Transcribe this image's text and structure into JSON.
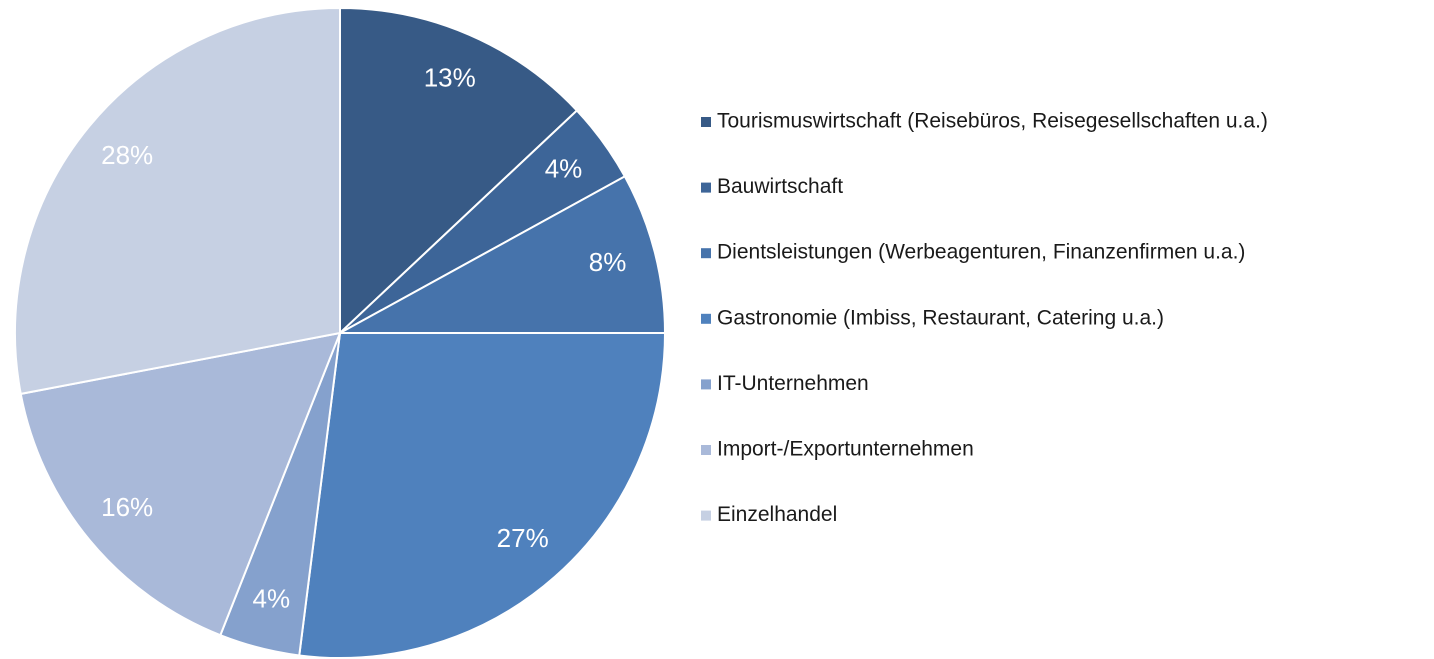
{
  "chart_data": {
    "type": "pie",
    "categories": [
      "Tourismuswirtschaft (Reisebüros, Reisegesellschaften u.a.)",
      "Bauwirtschaft",
      "Dientsleistungen (Werbeagenturen, Finanzenfirmen u.a.)",
      "Gastronomie (Imbiss, Restaurant, Catering u.a.)",
      "IT-Unternehmen",
      "Import-/Exportunternehmen",
      "Einzelhandel"
    ],
    "values": [
      13,
      4,
      8,
      27,
      4,
      16,
      28
    ],
    "value_labels": [
      "13%",
      "4%",
      "8%",
      "27%",
      "4%",
      "16%",
      "28%"
    ],
    "colors": [
      "#375a86",
      "#3d6598",
      "#4673ab",
      "#4f81bd",
      "#85a1cd",
      "#a9b9d9",
      "#c6d0e3"
    ],
    "legend": "right"
  }
}
